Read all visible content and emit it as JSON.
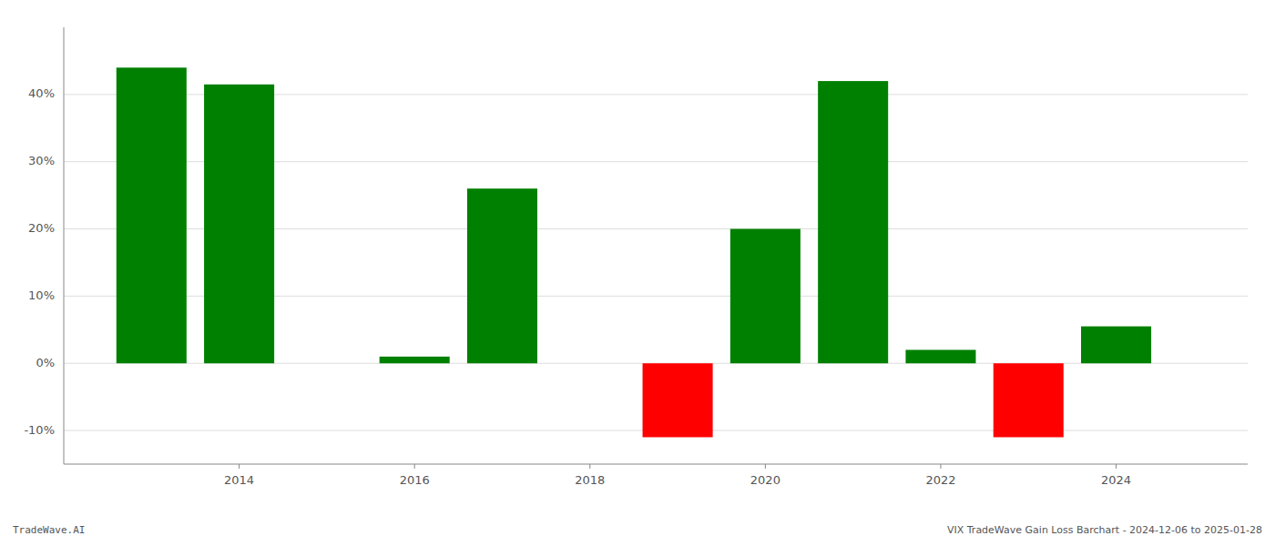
{
  "chart_data": {
    "type": "bar",
    "x": [
      2013,
      2014,
      2016,
      2017,
      2019,
      2020,
      2021,
      2022,
      2023,
      2024
    ],
    "values": [
      0.44,
      0.415,
      0.01,
      0.26,
      -0.11,
      0.2,
      0.42,
      0.02,
      -0.11,
      0.055
    ],
    "colors": [
      "#008000",
      "#008000",
      "#008000",
      "#008000",
      "#ff0000",
      "#008000",
      "#008000",
      "#008000",
      "#ff0000",
      "#008000"
    ],
    "xlim": [
      2012.0,
      2025.5
    ],
    "xticks": [
      2014,
      2016,
      2018,
      2020,
      2022,
      2024
    ],
    "ylim": [
      -0.15,
      0.5
    ],
    "yticks": [
      {
        "value": -0.1,
        "label": "-10%"
      },
      {
        "value": 0.0,
        "label": "0%"
      },
      {
        "value": 0.1,
        "label": "10%"
      },
      {
        "value": 0.2,
        "label": "20%"
      },
      {
        "value": 0.3,
        "label": "30%"
      },
      {
        "value": 0.4,
        "label": "40%"
      }
    ],
    "grid": true,
    "annotations": [
      "TradeWave.AI",
      "VIX TradeWave Gain Loss Barchart - 2024-12-06 to 2025-01-28"
    ]
  }
}
